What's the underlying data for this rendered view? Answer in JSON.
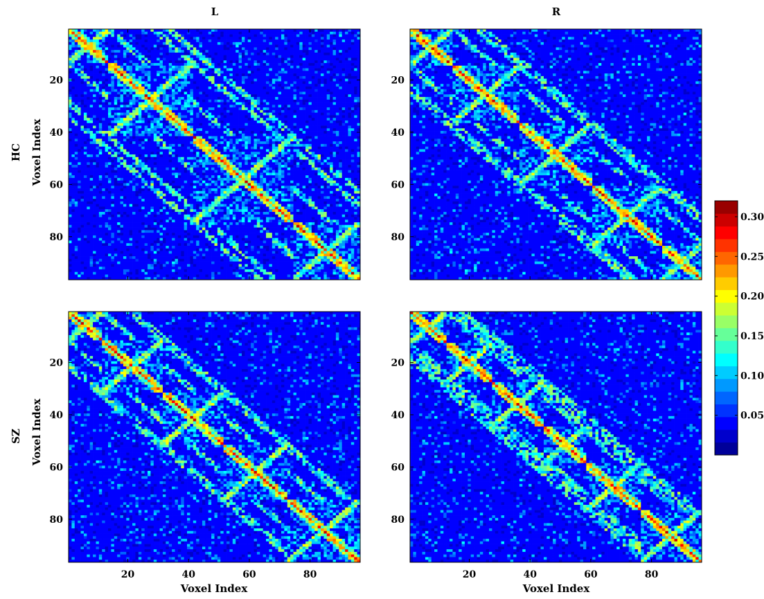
{
  "chart_data": {
    "type": "heatmap",
    "colormap": "jet",
    "n_voxels": 96,
    "columns": [
      "L",
      "R"
    ],
    "rows": [
      "HC",
      "SZ"
    ],
    "xlabel": "Voxel Index",
    "ylabel": "Voxel Index",
    "xticks": [
      20,
      40,
      60,
      80
    ],
    "yticks": [
      20,
      40,
      60,
      80
    ],
    "xlim": [
      0.5,
      96.5
    ],
    "ylim": [
      0.5,
      96.5
    ],
    "colorbar": {
      "range": [
        0,
        0.32
      ],
      "levels": 20,
      "ticks": [
        0.05,
        0.1,
        0.15,
        0.2,
        0.25,
        0.3
      ],
      "tick_labels": [
        "0.05",
        "0.10",
        "0.15",
        "0.20",
        "0.25",
        "0.30"
      ]
    },
    "panels": [
      {
        "row": "HC",
        "column": "L",
        "blocks": [
          [
            1,
            13
          ],
          [
            14,
            41
          ],
          [
            42,
            74
          ],
          [
            75,
            96
          ]
        ]
      },
      {
        "row": "HC",
        "column": "R",
        "blocks": [
          [
            1,
            14
          ],
          [
            15,
            36
          ],
          [
            37,
            60
          ],
          [
            61,
            83
          ],
          [
            84,
            96
          ]
        ]
      },
      {
        "row": "SZ",
        "column": "L",
        "blocks": [
          [
            1,
            11
          ],
          [
            12,
            31
          ],
          [
            32,
            51
          ],
          [
            52,
            72
          ],
          [
            73,
            96
          ]
        ]
      },
      {
        "row": "SZ",
        "column": "R",
        "blocks": [
          [
            1,
            12
          ],
          [
            13,
            27
          ],
          [
            28,
            44
          ],
          [
            45,
            58
          ],
          [
            59,
            76
          ],
          [
            77,
            96
          ]
        ]
      }
    ]
  }
}
